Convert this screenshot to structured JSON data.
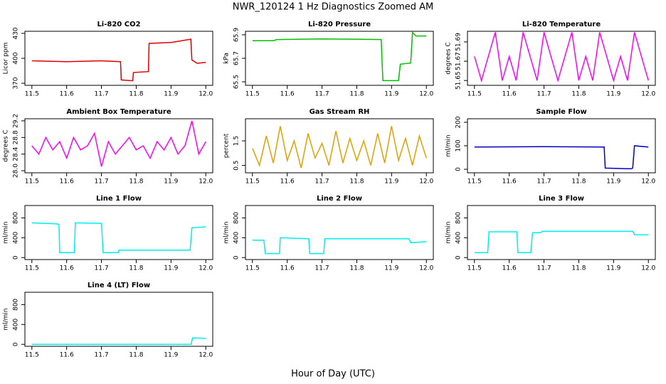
{
  "title": "NWR_120124  1 Hz Diagnostics Zoomed AM",
  "x_label": "Hour of Day (UTC)",
  "chart_data": [
    {
      "type": "line",
      "title": "Li-820 CO2",
      "y_label": "Licor ppm",
      "color": "#e00000",
      "xlim": [
        11.48,
        12.02
      ],
      "xticks": [
        11.5,
        11.6,
        11.7,
        11.8,
        11.9,
        {
          "value": 12,
          "label": "12.0"
        }
      ],
      "ylim": [
        367.5,
        432.5
      ],
      "yticks": [
        370,
        400,
        430
      ],
      "x": [
        11.5,
        11.6,
        11.7,
        11.755,
        11.757,
        11.79,
        11.792,
        11.835,
        11.837,
        11.9,
        11.957,
        11.96,
        11.975,
        12.0
      ],
      "values": [
        397,
        396,
        397,
        396,
        374,
        373,
        383,
        384,
        418,
        419,
        423,
        398,
        394,
        395
      ]
    },
    {
      "type": "line",
      "title": "Li-820 Pressure",
      "y_label": "kPa",
      "color": "#00c000",
      "xlim": [
        11.48,
        12.02
      ],
      "xticks": [
        11.5,
        11.6,
        11.7,
        11.8,
        11.9,
        {
          "value": 12,
          "label": "12.0"
        }
      ],
      "ylim": [
        65.47,
        65.93
      ],
      "yticks": [
        65.5,
        65.7,
        65.9
      ],
      "x": [
        11.5,
        11.56,
        11.57,
        11.7,
        11.87,
        11.875,
        11.92,
        11.925,
        11.955,
        11.96,
        11.97,
        12.0
      ],
      "values": [
        65.85,
        65.85,
        65.86,
        65.865,
        65.86,
        65.51,
        65.51,
        65.65,
        65.66,
        65.92,
        65.89,
        65.89
      ]
    },
    {
      "type": "line",
      "title": "Li-820 Temperature",
      "y_label": "degrees C",
      "color": "#ff00ff",
      "xlim": [
        11.48,
        12.02
      ],
      "xticks": [
        11.5,
        11.6,
        11.7,
        11.8,
        11.9,
        {
          "value": 12,
          "label": "12.0"
        }
      ],
      "ylim": [
        51.645,
        51.701
      ],
      "yticks": [
        51.65,
        51.67,
        51.69
      ],
      "x": [
        11.5,
        11.52,
        11.54,
        11.56,
        11.58,
        11.6,
        11.62,
        11.64,
        11.66,
        11.68,
        11.7,
        11.72,
        11.74,
        11.76,
        11.78,
        11.8,
        11.82,
        11.84,
        11.86,
        11.88,
        11.9,
        11.92,
        11.94,
        11.96,
        11.98,
        12.0
      ],
      "values": [
        51.675,
        51.65,
        51.675,
        51.7,
        51.65,
        51.675,
        51.65,
        51.7,
        51.675,
        51.65,
        51.7,
        51.675,
        51.65,
        51.675,
        51.7,
        51.65,
        51.675,
        51.65,
        51.7,
        51.675,
        51.65,
        51.675,
        51.65,
        51.7,
        51.675,
        51.65
      ]
    },
    {
      "type": "line",
      "title": "Ambient Box Temperature",
      "y_label": "degrees C",
      "color": "#ff00ff",
      "xlim": [
        11.48,
        12.02
      ],
      "xticks": [
        11.5,
        11.6,
        11.7,
        11.8,
        11.9,
        {
          "value": 12,
          "label": "12.0"
        }
      ],
      "ylim": [
        27.95,
        29.25
      ],
      "yticks": [
        {
          "value": 28,
          "label": "28.0"
        },
        28.4,
        28.8,
        29.2
      ],
      "x": [
        11.5,
        11.52,
        11.54,
        11.56,
        11.58,
        11.6,
        11.62,
        11.64,
        11.66,
        11.68,
        11.7,
        11.72,
        11.74,
        11.76,
        11.78,
        11.8,
        11.82,
        11.84,
        11.86,
        11.88,
        11.9,
        11.92,
        11.94,
        11.96,
        11.98,
        12.0
      ],
      "values": [
        28.6,
        28.4,
        28.8,
        28.5,
        28.7,
        28.3,
        28.8,
        28.5,
        28.6,
        28.9,
        28.1,
        28.7,
        28.4,
        28.6,
        28.8,
        28.5,
        28.6,
        28.3,
        28.7,
        28.5,
        28.8,
        28.4,
        28.6,
        29.2,
        28.4,
        28.7
      ]
    },
    {
      "type": "line",
      "title": "Gas Stream RH",
      "y_label": "percent",
      "color": "#e0a000",
      "xlim": [
        11.48,
        12.02
      ],
      "xticks": [
        11.5,
        11.6,
        11.7,
        11.8,
        11.9,
        {
          "value": 12,
          "label": "12.0"
        }
      ],
      "ylim": [
        0.2,
        2.4
      ],
      "yticks": [
        0.5,
        1.5
      ],
      "x": [
        11.5,
        11.52,
        11.54,
        11.56,
        11.58,
        11.6,
        11.62,
        11.64,
        11.66,
        11.68,
        11.7,
        11.72,
        11.74,
        11.76,
        11.78,
        11.8,
        11.82,
        11.84,
        11.86,
        11.88,
        11.9,
        11.92,
        11.94,
        11.96,
        11.98,
        12.0
      ],
      "values": [
        1.2,
        0.5,
        1.7,
        0.6,
        2.1,
        0.7,
        1.5,
        0.4,
        1.8,
        0.8,
        1.4,
        0.5,
        1.9,
        0.6,
        1.6,
        0.7,
        1.5,
        0.5,
        1.8,
        0.6,
        2.1,
        0.7,
        1.6,
        0.5,
        1.7,
        0.8
      ]
    },
    {
      "type": "line",
      "title": "Sample Flow",
      "y_label": "ml/min",
      "color": "#0000c0",
      "xlim": [
        11.48,
        12.02
      ],
      "xticks": [
        11.5,
        11.6,
        11.7,
        11.8,
        11.9,
        {
          "value": 12,
          "label": "12.0"
        }
      ],
      "ylim": [
        -15,
        215
      ],
      "yticks": [
        0,
        100,
        200
      ],
      "x": [
        11.5,
        11.7,
        11.873,
        11.876,
        11.95,
        11.955,
        11.96,
        12.0
      ],
      "values": [
        95,
        96,
        95,
        5,
        2,
        5,
        100,
        95
      ]
    },
    {
      "type": "line",
      "title": "Line 1 Flow",
      "y_label": "ml/min",
      "color": "#00eeee",
      "xlim": [
        11.48,
        12.02
      ],
      "xticks": [
        11.5,
        11.6,
        11.7,
        11.8,
        11.9,
        {
          "value": 12,
          "label": "12.0"
        }
      ],
      "ylim": [
        -40,
        1050
      ],
      "yticks": [
        0,
        400,
        800
      ],
      "x": [
        11.5,
        11.57,
        11.578,
        11.58,
        11.622,
        11.625,
        11.7,
        11.705,
        11.748,
        11.75,
        11.955,
        11.96,
        12.0
      ],
      "values": [
        700,
        680,
        670,
        100,
        100,
        700,
        690,
        100,
        100,
        150,
        150,
        600,
        620
      ]
    },
    {
      "type": "line",
      "title": "Line 2 Flow",
      "y_label": "ml/min",
      "color": "#00eeee",
      "xlim": [
        11.48,
        12.02
      ],
      "xticks": [
        11.5,
        11.6,
        11.7,
        11.8,
        11.9,
        {
          "value": 12,
          "label": "12.0"
        }
      ],
      "ylim": [
        -40,
        1050
      ],
      "yticks": [
        0,
        400,
        800
      ],
      "x": [
        11.5,
        11.533,
        11.537,
        11.578,
        11.58,
        11.662,
        11.665,
        11.705,
        11.708,
        11.95,
        11.955,
        12.0
      ],
      "values": [
        350,
        350,
        80,
        80,
        400,
        380,
        80,
        80,
        380,
        380,
        300,
        320
      ]
    },
    {
      "type": "line",
      "title": "Line 3 Flow",
      "y_label": "ml/min",
      "color": "#00eeee",
      "xlim": [
        11.48,
        12.02
      ],
      "xticks": [
        11.5,
        11.6,
        11.7,
        11.8,
        11.9,
        {
          "value": 12,
          "label": "12.0"
        }
      ],
      "ylim": [
        -40,
        1050
      ],
      "yticks": [
        0,
        400,
        800
      ],
      "x": [
        11.5,
        11.538,
        11.542,
        11.622,
        11.625,
        11.662,
        11.667,
        11.69,
        11.695,
        11.955,
        11.96,
        12.0
      ],
      "values": [
        100,
        100,
        520,
        520,
        100,
        100,
        500,
        500,
        530,
        530,
        460,
        460
      ]
    },
    {
      "type": "line",
      "title": "Line 4 (LT) Flow",
      "y_label": "ml/min",
      "color": "#00eeee",
      "xlim": [
        11.48,
        12.02
      ],
      "xticks": [
        11.5,
        11.6,
        11.7,
        11.8,
        11.9,
        {
          "value": 12,
          "label": "12.0"
        }
      ],
      "ylim": [
        -40,
        1050
      ],
      "yticks": [
        0,
        400,
        800
      ],
      "x": [
        11.5,
        11.958,
        11.962,
        12.0
      ],
      "values": [
        0,
        0,
        130,
        120
      ]
    }
  ]
}
